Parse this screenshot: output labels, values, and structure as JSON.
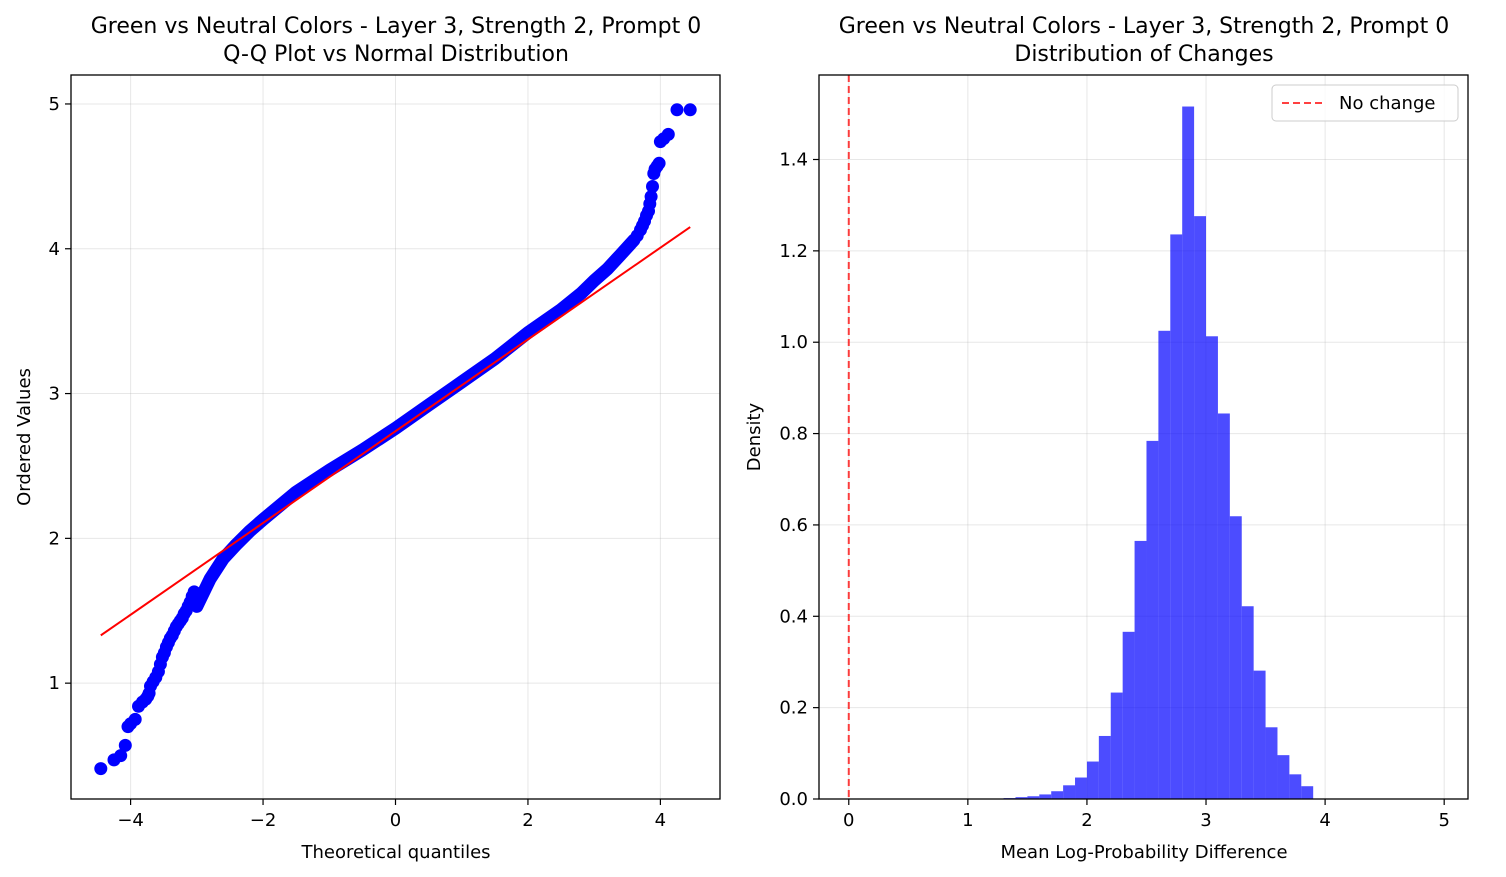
{
  "chart_data": [
    {
      "type": "scatter",
      "title_line1": "Green vs Neutral Colors - Layer 3, Strength 2, Prompt 0",
      "title_line2": "Q-Q Plot vs Normal Distribution",
      "xlabel": "Theoretical quantiles",
      "ylabel": "Ordered Values",
      "xlim": [
        -4.9,
        4.9
      ],
      "ylim": [
        0.2,
        5.2
      ],
      "xticks": [
        -4,
        -2,
        0,
        2,
        4
      ],
      "xtick_labels": [
        "−4",
        "−2",
        "0",
        "2",
        "4"
      ],
      "yticks": [
        1,
        2,
        3,
        4,
        5
      ],
      "ytick_labels": [
        "1",
        "2",
        "3",
        "4",
        "5"
      ],
      "grid": true,
      "point_color": "#0000ff",
      "line_color": "#ff0000",
      "fit_line": {
        "x": [
          -4.45,
          4.45
        ],
        "y": [
          1.33,
          4.15
        ]
      },
      "curve": {
        "x": [
          -3.0,
          -2.8,
          -2.6,
          -2.4,
          -2.2,
          -2.0,
          -1.5,
          -1.0,
          -0.5,
          0.0,
          0.5,
          1.0,
          1.5,
          2.0,
          2.5,
          2.8,
          3.0,
          3.2,
          3.4,
          3.6
        ],
        "y": [
          1.53,
          1.72,
          1.86,
          1.96,
          2.05,
          2.13,
          2.32,
          2.47,
          2.61,
          2.76,
          2.92,
          3.08,
          3.24,
          3.42,
          3.58,
          3.69,
          3.78,
          3.86,
          3.96,
          4.06
        ]
      },
      "tail_points": {
        "x": [
          -4.45,
          -4.25,
          -4.15,
          -4.08,
          -4.04,
          -4.0,
          -3.93,
          -3.88,
          -3.82,
          -3.77,
          -3.74,
          -3.72,
          -3.7,
          -3.66,
          -3.62,
          -3.58,
          -3.55,
          -3.52,
          -3.49,
          -3.46,
          -3.43,
          -3.4,
          -3.37,
          -3.34,
          -3.31,
          -3.28,
          -3.25,
          -3.22,
          -3.19,
          -3.16,
          -3.13,
          -3.1,
          -3.07,
          -3.04,
          3.65,
          3.7,
          3.73,
          3.76,
          3.79,
          3.82,
          3.84,
          3.86,
          3.88,
          3.9,
          3.92,
          3.95,
          3.98,
          4.0,
          4.05,
          4.12,
          4.25,
          4.45
        ],
        "y": [
          0.41,
          0.47,
          0.5,
          0.57,
          0.7,
          0.72,
          0.75,
          0.84,
          0.87,
          0.89,
          0.91,
          0.93,
          0.98,
          1.01,
          1.04,
          1.08,
          1.13,
          1.18,
          1.21,
          1.25,
          1.28,
          1.31,
          1.33,
          1.36,
          1.39,
          1.41,
          1.43,
          1.45,
          1.48,
          1.5,
          1.53,
          1.56,
          1.6,
          1.63,
          4.09,
          4.13,
          4.16,
          4.19,
          4.23,
          4.26,
          4.31,
          4.36,
          4.43,
          4.52,
          4.55,
          4.57,
          4.59,
          4.74,
          4.76,
          4.79,
          4.96,
          4.96
        ]
      }
    },
    {
      "type": "bar",
      "title_line1": "Green vs Neutral Colors - Layer 3, Strength 2, Prompt 0",
      "title_line2": "Distribution of Changes",
      "xlabel": "Mean Log-Probability Difference",
      "ylabel": "Density",
      "xlim": [
        -0.25,
        5.2
      ],
      "ylim": [
        0,
        1.585
      ],
      "xticks": [
        0,
        1,
        2,
        3,
        4,
        5
      ],
      "xtick_labels": [
        "0",
        "1",
        "2",
        "3",
        "4",
        "5"
      ],
      "yticks": [
        0.0,
        0.2,
        0.4,
        0.6,
        0.8,
        1.0,
        1.2,
        1.4
      ],
      "ytick_labels": [
        "0.0",
        "0.2",
        "0.4",
        "0.6",
        "0.8",
        "1.0",
        "1.2",
        "1.4"
      ],
      "grid": true,
      "bar_color": "#0000ff",
      "bar_alpha": 0.7,
      "bin_width": 0.1,
      "bins_left": [
        1.3,
        1.4,
        1.5,
        1.6,
        1.7,
        1.8,
        1.9,
        2.0,
        2.1,
        2.2,
        2.3,
        2.4,
        2.5,
        2.6,
        2.7,
        2.8,
        2.9,
        3.0,
        3.1,
        3.2,
        3.3,
        3.4,
        3.5,
        3.6,
        3.7,
        3.8
      ],
      "values": [
        0.002,
        0.004,
        0.006,
        0.01,
        0.017,
        0.03,
        0.047,
        0.082,
        0.138,
        0.233,
        0.366,
        0.565,
        0.784,
        1.025,
        1.236,
        1.516,
        1.276,
        1.013,
        0.844,
        0.619,
        0.422,
        0.281,
        0.157,
        0.096,
        0.054,
        0.028
      ],
      "vline": {
        "x": 0,
        "color": "#ff0000",
        "style": "dashed",
        "label": "No change"
      },
      "legend": {
        "entries": [
          "No change"
        ],
        "placement": "upper-right"
      }
    }
  ]
}
